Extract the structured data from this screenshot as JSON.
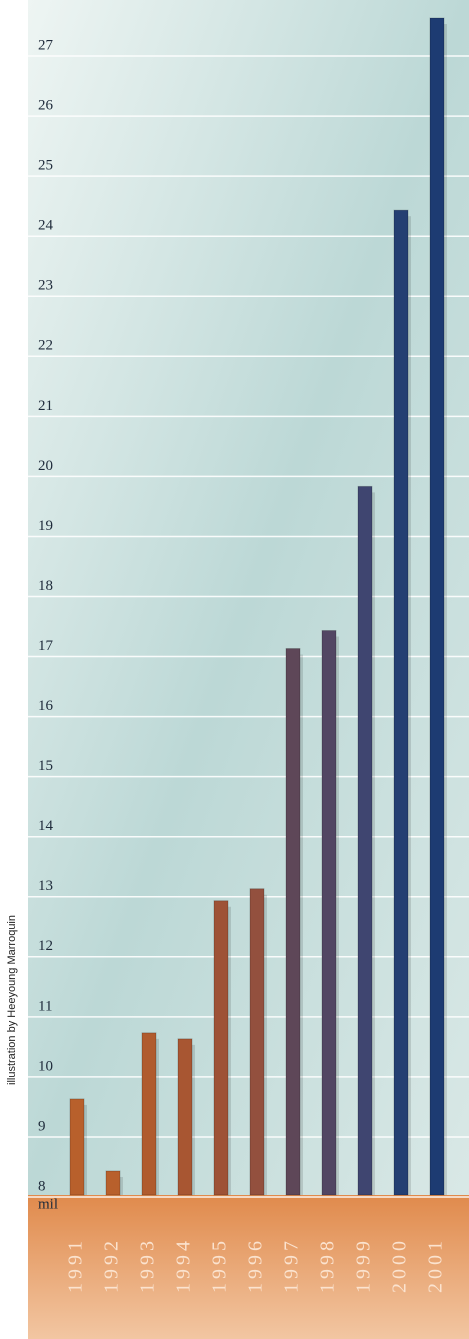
{
  "chart_data": {
    "type": "bar",
    "categories": [
      "1991",
      "1992",
      "1993",
      "1994",
      "1995",
      "1996",
      "1997",
      "1998",
      "1999",
      "2000",
      "2001"
    ],
    "values": [
      9.5,
      8.3,
      10.6,
      10.5,
      12.8,
      13.0,
      17.0,
      17.3,
      19.7,
      24.3,
      27.5
    ],
    "colors": [
      "#b8602c",
      "#b8602c",
      "#b05b2e",
      "#a85632",
      "#9e5236",
      "#93503e",
      "#5e4758",
      "#524663",
      "#3f4570",
      "#243f72",
      "#1d3b72"
    ],
    "ylim": [
      7.9,
      27.8
    ],
    "yticks": [
      8,
      9,
      10,
      11,
      12,
      13,
      14,
      15,
      16,
      17,
      18,
      19,
      20,
      21,
      22,
      23,
      24,
      25,
      26,
      27
    ],
    "unit_label": "mil",
    "grid": true,
    "credit": "illustration by Heeyoung Marroquin"
  }
}
